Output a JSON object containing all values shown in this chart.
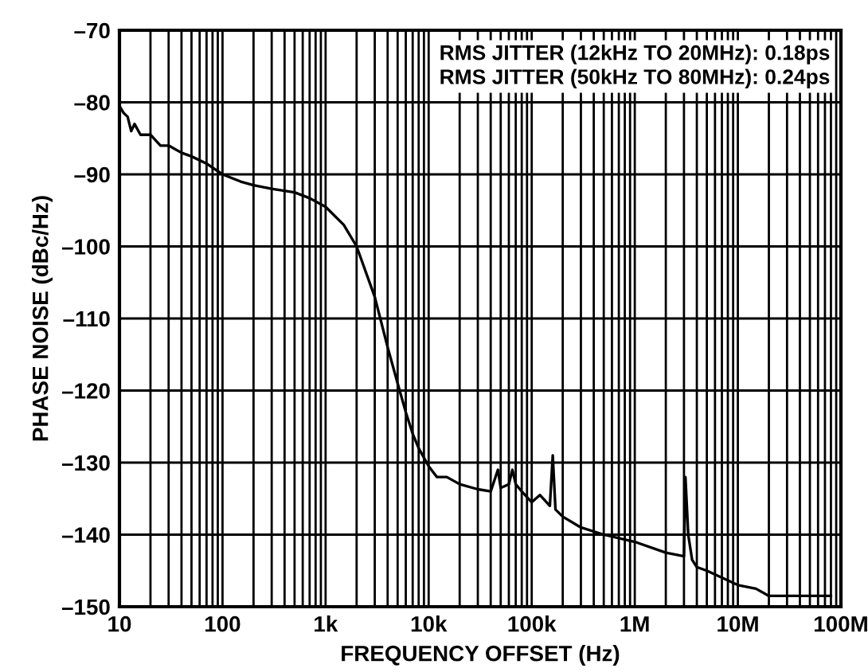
{
  "chart_data": {
    "type": "line",
    "xlabel": "FREQUENCY OFFSET (Hz)",
    "ylabel": "PHASE NOISE (dBc/Hz)",
    "log": "x",
    "grid": true,
    "line_style": "solid",
    "marker": "none",
    "x": [
      10,
      11,
      12,
      13,
      14,
      16,
      20,
      25,
      30,
      40,
      50,
      70,
      100,
      150,
      200,
      300,
      500,
      700,
      1000,
      1500,
      2000,
      3000,
      4000,
      5000,
      6000,
      7000,
      8000,
      10000,
      12000,
      15000,
      20000,
      30000,
      40000,
      47000,
      50000,
      60000,
      65000,
      70000,
      80000,
      100000,
      120000,
      150000,
      160000,
      170000,
      200000,
      300000,
      500000,
      1000000,
      2000000,
      3000000,
      3100000,
      3300000,
      3600000,
      4000000,
      5000000,
      10000000,
      15000000,
      20000000,
      80000000
    ],
    "series": [
      {
        "color": "#000000",
        "values": [
          -80.5,
          -81.5,
          -82,
          -84,
          -83,
          -84.5,
          -84.5,
          -86,
          -86,
          -87,
          -87.5,
          -88.5,
          -90,
          -91,
          -91.5,
          -92,
          -92.5,
          -93.3,
          -94.5,
          -97,
          -100,
          -107,
          -114,
          -119,
          -123,
          -126,
          -128,
          -130.5,
          -132,
          -132,
          -133,
          -133.7,
          -134,
          -131,
          -133.5,
          -133,
          -131,
          -133,
          -134,
          -135.5,
          -134.5,
          -136,
          -129,
          -136.5,
          -137.5,
          -139,
          -140,
          -141,
          -142.5,
          -143,
          -132,
          -140,
          -143.5,
          -144.5,
          -145,
          -147,
          -147.5,
          -148.5,
          -148.5
        ]
      }
    ],
    "xlim": [
      10,
      100000000
    ],
    "xticks": [
      {
        "value": 10,
        "label": "10"
      },
      {
        "value": 20,
        "label": null
      },
      {
        "value": 30,
        "label": null
      },
      {
        "value": 40,
        "label": null
      },
      {
        "value": 50,
        "label": null
      },
      {
        "value": 60,
        "label": null
      },
      {
        "value": 70,
        "label": null
      },
      {
        "value": 80,
        "label": null
      },
      {
        "value": 90,
        "label": null
      },
      {
        "value": 100,
        "label": "100"
      },
      {
        "value": 200,
        "label": null
      },
      {
        "value": 300,
        "label": null
      },
      {
        "value": 400,
        "label": null
      },
      {
        "value": 500,
        "label": null
      },
      {
        "value": 600,
        "label": null
      },
      {
        "value": 700,
        "label": null
      },
      {
        "value": 800,
        "label": null
      },
      {
        "value": 900,
        "label": null
      },
      {
        "value": 1000,
        "label": "1k"
      },
      {
        "value": 2000,
        "label": null
      },
      {
        "value": 3000,
        "label": null
      },
      {
        "value": 4000,
        "label": null
      },
      {
        "value": 5000,
        "label": null
      },
      {
        "value": 6000,
        "label": null
      },
      {
        "value": 7000,
        "label": null
      },
      {
        "value": 8000,
        "label": null
      },
      {
        "value": 9000,
        "label": null
      },
      {
        "value": 10000,
        "label": "10k"
      },
      {
        "value": 20000,
        "label": null
      },
      {
        "value": 30000,
        "label": null
      },
      {
        "value": 40000,
        "label": null
      },
      {
        "value": 50000,
        "label": null
      },
      {
        "value": 60000,
        "label": null
      },
      {
        "value": 70000,
        "label": null
      },
      {
        "value": 80000,
        "label": null
      },
      {
        "value": 90000,
        "label": null
      },
      {
        "value": 100000,
        "label": "100k"
      },
      {
        "value": 200000,
        "label": null
      },
      {
        "value": 300000,
        "label": null
      },
      {
        "value": 400000,
        "label": null
      },
      {
        "value": 500000,
        "label": null
      },
      {
        "value": 600000,
        "label": null
      },
      {
        "value": 700000,
        "label": null
      },
      {
        "value": 800000,
        "label": null
      },
      {
        "value": 900000,
        "label": null
      },
      {
        "value": 1000000,
        "label": "1M"
      },
      {
        "value": 2000000,
        "label": null
      },
      {
        "value": 3000000,
        "label": null
      },
      {
        "value": 4000000,
        "label": null
      },
      {
        "value": 5000000,
        "label": null
      },
      {
        "value": 6000000,
        "label": null
      },
      {
        "value": 7000000,
        "label": null
      },
      {
        "value": 8000000,
        "label": null
      },
      {
        "value": 9000000,
        "label": null
      },
      {
        "value": 10000000,
        "label": "10M"
      },
      {
        "value": 20000000,
        "label": null
      },
      {
        "value": 30000000,
        "label": null
      },
      {
        "value": 40000000,
        "label": null
      },
      {
        "value": 50000000,
        "label": null
      },
      {
        "value": 60000000,
        "label": null
      },
      {
        "value": 70000000,
        "label": null
      },
      {
        "value": 80000000,
        "label": null
      },
      {
        "value": 90000000,
        "label": null
      },
      {
        "value": 100000000,
        "label": "100M"
      }
    ],
    "ylim": [
      -150,
      -70
    ],
    "yticks": [
      {
        "value": -150,
        "label": "–150"
      },
      {
        "value": -140,
        "label": "–140"
      },
      {
        "value": -130,
        "label": "–130"
      },
      {
        "value": -120,
        "label": "–120"
      },
      {
        "value": -110,
        "label": "–110"
      },
      {
        "value": -100,
        "label": "–100"
      },
      {
        "value": -90,
        "label": "–90"
      },
      {
        "value": -80,
        "label": "–80"
      },
      {
        "value": -70,
        "label": "–70"
      }
    ],
    "annotations": [
      "RMS JITTER (12kHz TO 20MHz): 0.18ps",
      "RMS JITTER (50kHz TO 80MHz): 0.24ps"
    ]
  }
}
